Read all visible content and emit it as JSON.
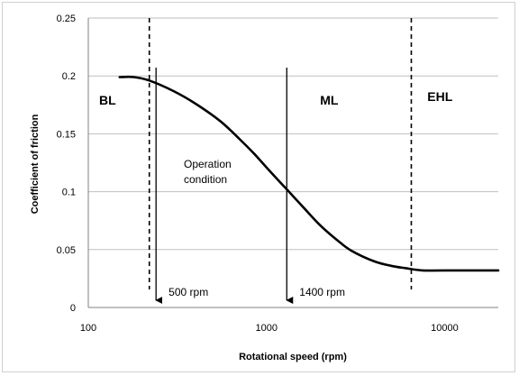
{
  "chart_data": {
    "type": "line",
    "xlabel": "Rotational speed (rpm)",
    "ylabel": "Coefficient of friction",
    "x_scale": "log",
    "xlim": [
      100,
      20000
    ],
    "ylim": [
      0,
      0.25
    ],
    "grid": "horizontal",
    "x_ticks": [
      100,
      1000,
      10000
    ],
    "x_tick_labels": [
      "100",
      "1000",
      "10000"
    ],
    "y_ticks": [
      0,
      0.05,
      0.1,
      0.15,
      0.2,
      0.25
    ],
    "y_tick_labels": [
      "0",
      "0.05",
      "0.1",
      "0.15",
      "0.2",
      "0.25"
    ],
    "line_color": "#000000",
    "series": [
      {
        "x": [
          150,
          180,
          220,
          300,
          400,
          550,
          700,
          850,
          1000,
          1300,
          1600,
          2000,
          2500,
          3000,
          4000,
          5000,
          6000,
          7500,
          10000,
          20000
        ],
        "y": [
          0.199,
          0.199,
          0.196,
          0.187,
          0.176,
          0.161,
          0.146,
          0.133,
          0.121,
          0.102,
          0.087,
          0.071,
          0.058,
          0.049,
          0.04,
          0.036,
          0.034,
          0.032,
          0.032,
          0.032
        ]
      }
    ],
    "regime_boundaries": [
      220,
      6500
    ],
    "regions": [
      {
        "label": "BL",
        "x": 115,
        "y": 0.18
      },
      {
        "label": "ML",
        "x": 2000,
        "y": 0.18
      },
      {
        "label": "EHL",
        "x": 8000,
        "y": 0.183
      }
    ],
    "arrows": [
      {
        "x": 240,
        "label": "500 rpm"
      },
      {
        "x": 1300,
        "label": "1400 rpm"
      }
    ],
    "annotation": [
      "Operation",
      "condition"
    ]
  }
}
